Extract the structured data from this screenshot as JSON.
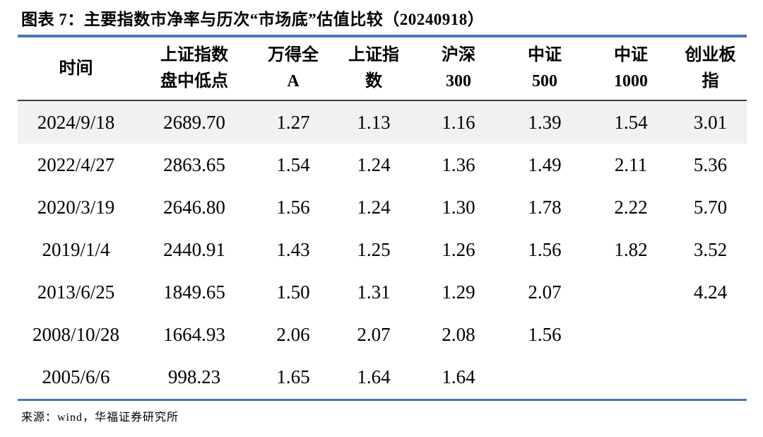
{
  "title": "图表 7：主要指数市净率与历次“市场底”估值比较（20240918）",
  "colors": {
    "accent_blue": "#4E74B8",
    "header_rule": "#3F3F3F",
    "highlight_row": "#F1F1F1",
    "text": "#000000",
    "background": "#FFFFFF"
  },
  "table": {
    "columns": [
      {
        "line1": "时间",
        "line2": ""
      },
      {
        "line1": "上证指数",
        "line2": "盘中低点"
      },
      {
        "line1": "万得全",
        "line2": "A"
      },
      {
        "line1": "上证指",
        "line2": "数"
      },
      {
        "line1": "沪深",
        "line2": "300"
      },
      {
        "line1": "中证",
        "line2": "500"
      },
      {
        "line1": "中证",
        "line2": "1000"
      },
      {
        "line1": "创业板",
        "line2": "指"
      }
    ],
    "rows": [
      {
        "highlighted": true,
        "cells": [
          "2024/9/18",
          "2689.70",
          "1.27",
          "1.13",
          "1.16",
          "1.39",
          "1.54",
          "3.01"
        ]
      },
      {
        "highlighted": false,
        "cells": [
          "2022/4/27",
          "2863.65",
          "1.54",
          "1.24",
          "1.36",
          "1.49",
          "2.11",
          "5.36"
        ]
      },
      {
        "highlighted": false,
        "cells": [
          "2020/3/19",
          "2646.80",
          "1.56",
          "1.24",
          "1.30",
          "1.78",
          "2.22",
          "5.70"
        ]
      },
      {
        "highlighted": false,
        "cells": [
          "2019/1/4",
          "2440.91",
          "1.43",
          "1.25",
          "1.26",
          "1.56",
          "1.82",
          "3.52"
        ]
      },
      {
        "highlighted": false,
        "cells": [
          "2013/6/25",
          "1849.65",
          "1.50",
          "1.31",
          "1.29",
          "2.07",
          "",
          "4.24"
        ]
      },
      {
        "highlighted": false,
        "cells": [
          "2008/10/28",
          "1664.93",
          "2.06",
          "2.07",
          "2.08",
          "1.56",
          "",
          ""
        ]
      },
      {
        "highlighted": false,
        "cells": [
          "2005/6/6",
          "998.23",
          "1.65",
          "1.64",
          "1.64",
          "",
          "",
          ""
        ]
      }
    ]
  },
  "footer": {
    "source": "来源：wind，华福证券研究所"
  },
  "chart_data": {
    "type": "table",
    "title": "主要指数市净率与历次“市场底”估值比较（20240918）",
    "columns": [
      "时间",
      "上证指数盘中低点",
      "万得全A",
      "上证指数",
      "沪深300",
      "中证500",
      "中证1000",
      "创业板指"
    ],
    "rows": [
      [
        "2024/9/18",
        2689.7,
        1.27,
        1.13,
        1.16,
        1.39,
        1.54,
        3.01
      ],
      [
        "2022/4/27",
        2863.65,
        1.54,
        1.24,
        1.36,
        1.49,
        2.11,
        5.36
      ],
      [
        "2020/3/19",
        2646.8,
        1.56,
        1.24,
        1.3,
        1.78,
        2.22,
        5.7
      ],
      [
        "2019/1/4",
        2440.91,
        1.43,
        1.25,
        1.26,
        1.56,
        1.82,
        3.52
      ],
      [
        "2013/6/25",
        1849.65,
        1.5,
        1.31,
        1.29,
        2.07,
        null,
        4.24
      ],
      [
        "2008/10/28",
        1664.93,
        2.06,
        2.07,
        2.08,
        1.56,
        null,
        null
      ],
      [
        "2005/6/6",
        998.23,
        1.65,
        1.64,
        1.64,
        null,
        null,
        null
      ]
    ]
  }
}
